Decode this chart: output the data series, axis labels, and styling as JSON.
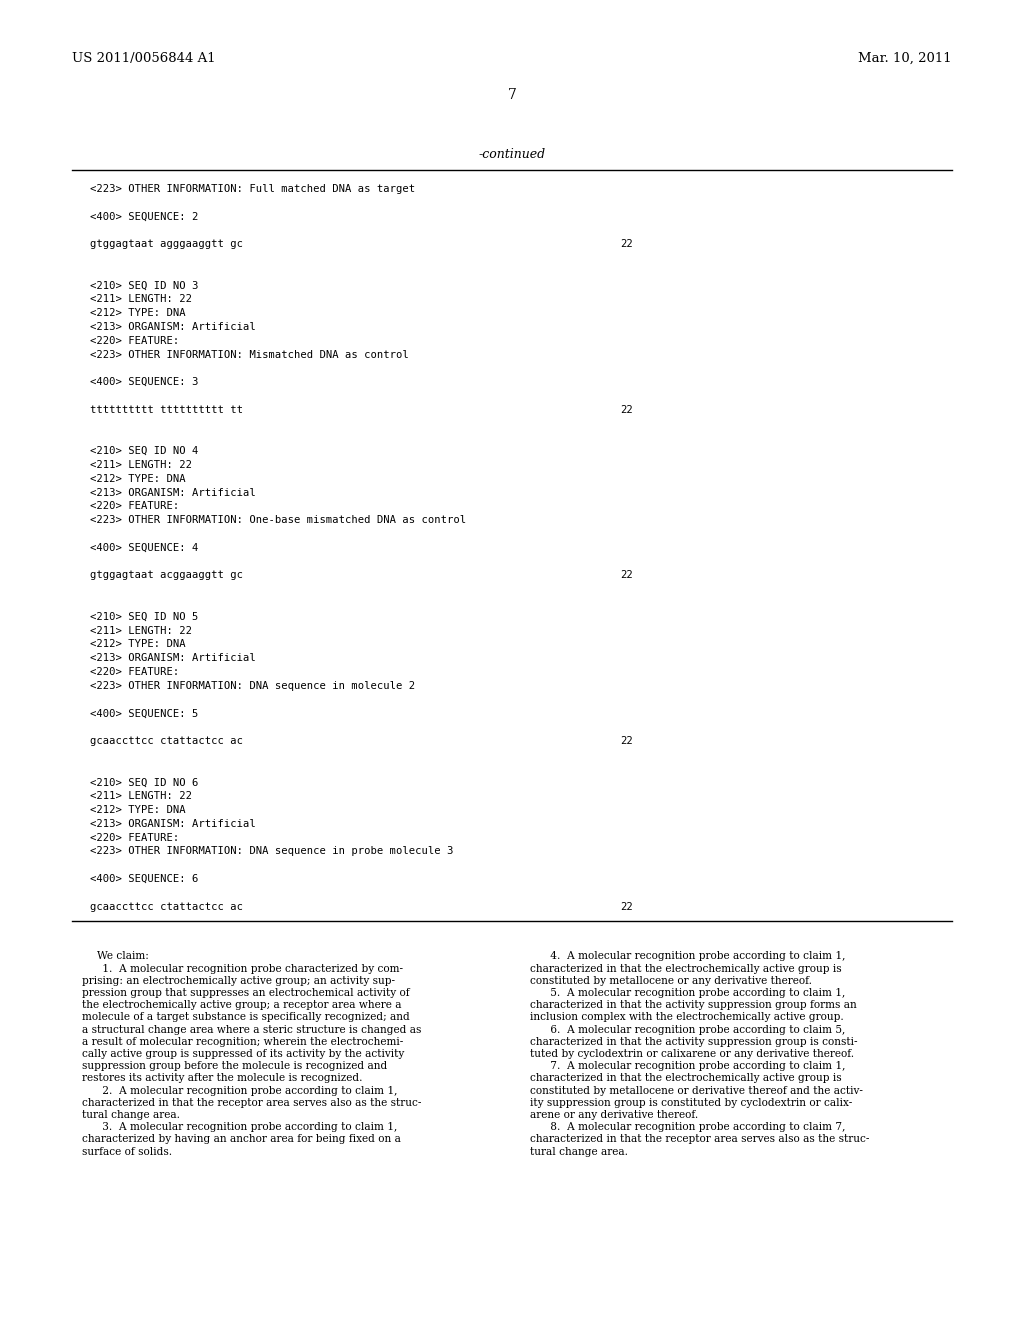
{
  "background_color": "#ffffff",
  "header_left": "US 2011/0056844 A1",
  "header_right": "Mar. 10, 2011",
  "page_number": "7",
  "continued_label": "-continued",
  "mono_lines": [
    "<223> OTHER INFORMATION: Full matched DNA as target",
    "",
    "<400> SEQUENCE: 2",
    "",
    "gtggagtaat agggaaggtt gc",
    "",
    "",
    "<210> SEQ ID NO 3",
    "<211> LENGTH: 22",
    "<212> TYPE: DNA",
    "<213> ORGANISM: Artificial",
    "<220> FEATURE:",
    "<223> OTHER INFORMATION: Mismatched DNA as control",
    "",
    "<400> SEQUENCE: 3",
    "",
    "tttttttttt tttttttttt tt",
    "",
    "",
    "<210> SEQ ID NO 4",
    "<211> LENGTH: 22",
    "<212> TYPE: DNA",
    "<213> ORGANISM: Artificial",
    "<220> FEATURE:",
    "<223> OTHER INFORMATION: One-base mismatched DNA as control",
    "",
    "<400> SEQUENCE: 4",
    "",
    "gtggagtaat acggaaggtt gc",
    "",
    "",
    "<210> SEQ ID NO 5",
    "<211> LENGTH: 22",
    "<212> TYPE: DNA",
    "<213> ORGANISM: Artificial",
    "<220> FEATURE:",
    "<223> OTHER INFORMATION: DNA sequence in molecule 2",
    "",
    "<400> SEQUENCE: 5",
    "",
    "gcaaccttcc ctattactcc ac",
    "",
    "",
    "<210> SEQ ID NO 6",
    "<211> LENGTH: 22",
    "<212> TYPE: DNA",
    "<213> ORGANISM: Artificial",
    "<220> FEATURE:",
    "<223> OTHER INFORMATION: DNA sequence in probe molecule 3",
    "",
    "<400> SEQUENCE: 6",
    "",
    "gcaaccttcc ctattactcc ac"
  ],
  "seq_number_lines": [
    4,
    16,
    28,
    40,
    52
  ],
  "claims_left_col": [
    "We claim:",
    "      1.  A molecular recognition probe characterized by com-",
    "prising: an electrochemically active group; an activity sup-",
    "pression group that suppresses an electrochemical activity of",
    "the electrochemically active group; a receptor area where a",
    "molecule of a target substance is specifically recognized; and",
    "a structural change area where a steric structure is changed as",
    "a result of molecular recognition; wherein the electrochemi-",
    "cally active group is suppressed of its activity by the activity",
    "suppression group before the molecule is recognized and",
    "restores its activity after the molecule is recognized.",
    "      2.  A molecular recognition probe according to claim 1,",
    "characterized in that the receptor area serves also as the struc-",
    "tural change area.",
    "      3.  A molecular recognition probe according to claim 1,",
    "characterized by having an anchor area for being fixed on a",
    "surface of solids."
  ],
  "claims_right_col": [
    "      4.  A molecular recognition probe according to claim 1,",
    "characterized in that the electrochemically active group is",
    "constituted by metallocene or any derivative thereof.",
    "      5.  A molecular recognition probe according to claim 1,",
    "characterized in that the activity suppression group forms an",
    "inclusion complex with the electrochemically active group.",
    "      6.  A molecular recognition probe according to claim 5,",
    "characterized in that the activity suppression group is consti-",
    "tuted by cyclodextrin or calixarene or any derivative thereof.",
    "      7.  A molecular recognition probe according to claim 1,",
    "characterized in that the electrochemically active group is",
    "constituted by metallocene or derivative thereof and the activ-",
    "ity suppression group is constituted by cyclodextrin or calix-",
    "arene or any derivative thereof.",
    "      8.  A molecular recognition probe according to claim 7,",
    "characterized in that the receptor area serves also as the struc-",
    "tural change area."
  ]
}
